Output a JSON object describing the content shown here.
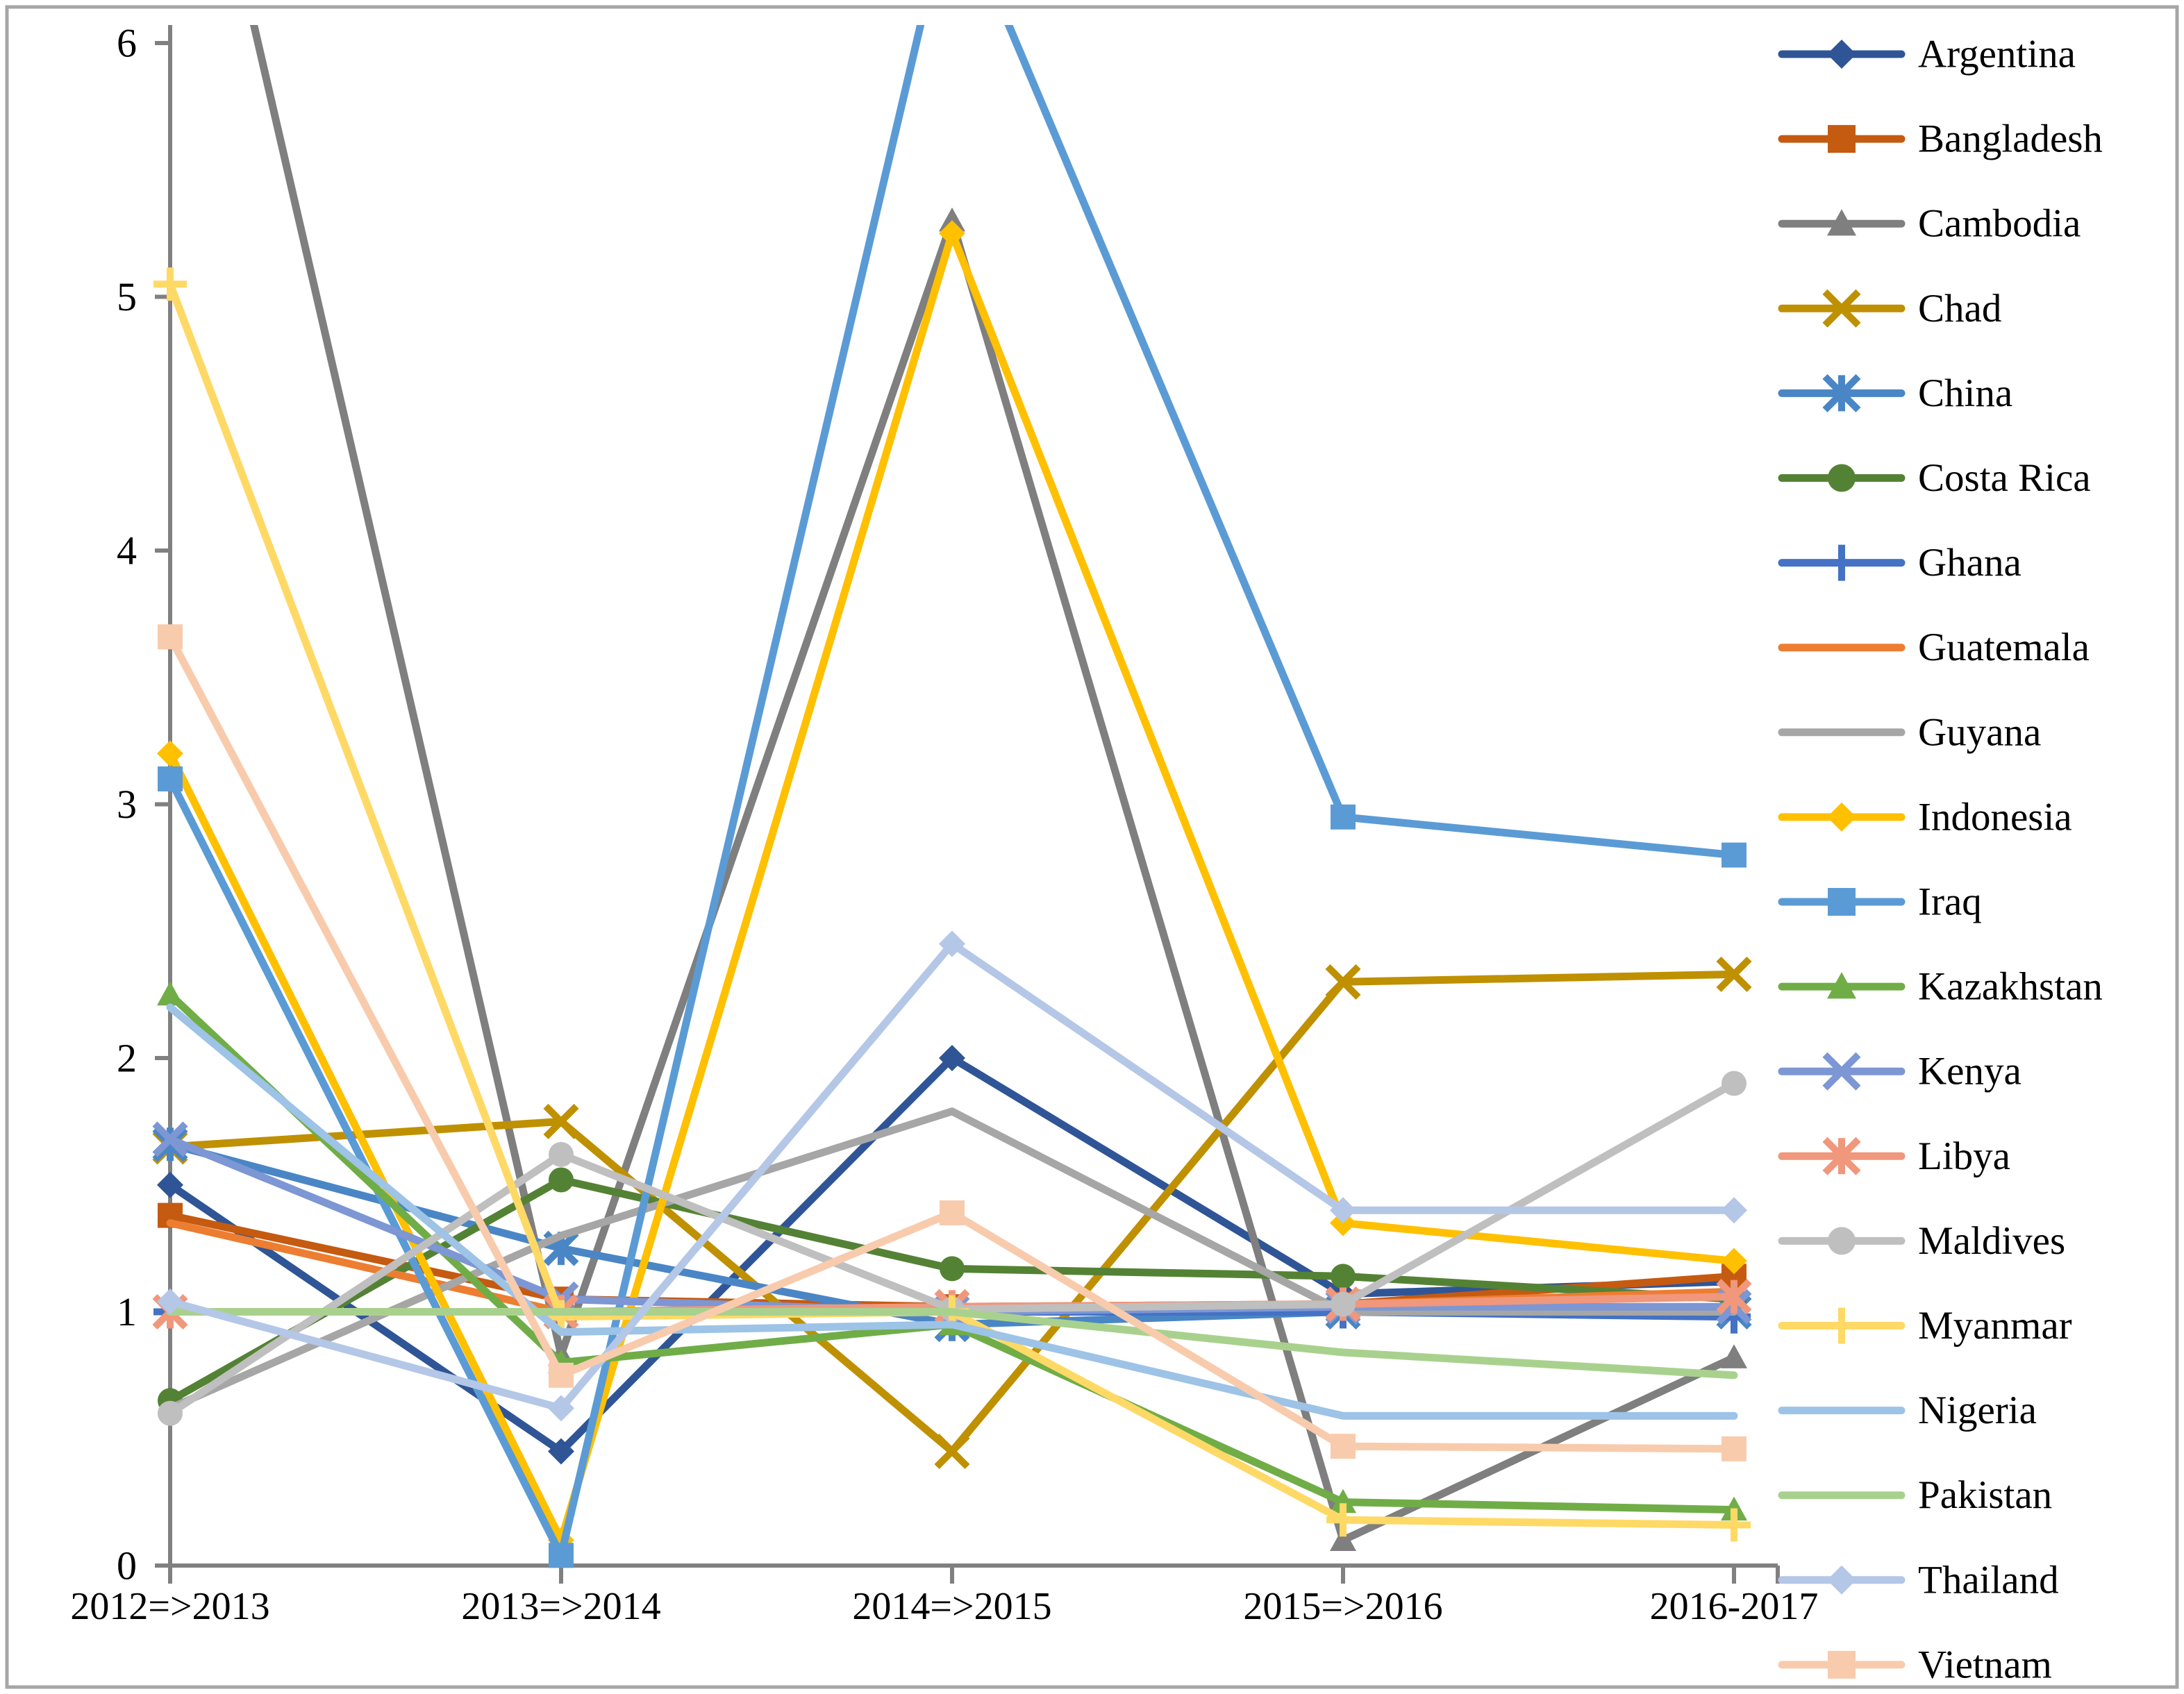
{
  "figure": {
    "background": "#FFFFFF",
    "border_color": "#A6A6A6",
    "axis_color": "#808080"
  },
  "chart_data": {
    "type": "line",
    "title": "",
    "xlabel": "",
    "ylabel": "",
    "categories": [
      "2012=>2013",
      "2013=>2014",
      "2014=>2015",
      "2015=>2016",
      "2016-2017"
    ],
    "y_ticks": [
      "0",
      "1",
      "2",
      "3",
      "4",
      "5",
      "6"
    ],
    "ylim": [
      0,
      6
    ],
    "grid": false,
    "legend_position": "right",
    "clip_note": "values above 6 run off the top of the plot",
    "series": [
      {
        "name": "Argentina",
        "color": "#2F5597",
        "marker": "diamond",
        "values": [
          1.5,
          0.45,
          2.0,
          1.07,
          1.12
        ]
      },
      {
        "name": "Bangladesh",
        "color": "#C55A11",
        "marker": "square",
        "values": [
          1.38,
          1.05,
          1.02,
          1.03,
          1.14
        ]
      },
      {
        "name": "Cambodia",
        "color": "#7F7F7F",
        "marker": "triangle",
        "values": [
          7.5,
          0.83,
          5.3,
          0.1,
          0.82
        ]
      },
      {
        "name": "Chad",
        "color": "#BF9000",
        "marker": "x",
        "values": [
          1.65,
          1.75,
          0.45,
          2.3,
          2.33
        ]
      },
      {
        "name": "China",
        "color": "#4A86C5",
        "marker": "asterisk",
        "values": [
          1.66,
          1.25,
          0.95,
          1.0,
          1.0
        ]
      },
      {
        "name": "Costa Rica",
        "color": "#548235",
        "marker": "circle",
        "values": [
          0.65,
          1.52,
          1.17,
          1.14,
          1.05
        ]
      },
      {
        "name": "Ghana",
        "color": "#4472C4",
        "marker": "plus",
        "values": [
          1.0,
          1.0,
          1.0,
          1.0,
          0.98
        ]
      },
      {
        "name": "Guatemala",
        "color": "#ED7D31",
        "marker": "none",
        "values": [
          1.35,
          1.0,
          1.0,
          1.03,
          1.08
        ]
      },
      {
        "name": "Guyana",
        "color": "#A6A6A6",
        "marker": "none",
        "values": [
          0.62,
          1.3,
          1.79,
          1.0,
          1.0
        ]
      },
      {
        "name": "Indonesia",
        "color": "#FFC000",
        "marker": "diamond",
        "values": [
          3.2,
          0.1,
          5.25,
          1.35,
          1.2
        ]
      },
      {
        "name": "Iraq",
        "color": "#5B9BD5",
        "marker": "square",
        "values": [
          3.1,
          0.04,
          6.6,
          2.95,
          2.8
        ]
      },
      {
        "name": "Kazakhstan",
        "color": "#70AD47",
        "marker": "triangle",
        "values": [
          2.25,
          0.8,
          0.95,
          0.25,
          0.22
        ]
      },
      {
        "name": "Kenya",
        "color": "#7D96D4",
        "marker": "x",
        "values": [
          1.68,
          1.05,
          1.0,
          1.02,
          1.02
        ]
      },
      {
        "name": "Libya",
        "color": "#F0977C",
        "marker": "asterisk",
        "values": [
          1.0,
          1.0,
          1.02,
          1.03,
          1.06
        ]
      },
      {
        "name": "Maldives",
        "color": "#BFBFBF",
        "marker": "circle",
        "values": [
          0.6,
          1.62,
          1.01,
          1.03,
          1.9
        ]
      },
      {
        "name": "Myanmar",
        "color": "#FFD966",
        "marker": "plus",
        "values": [
          5.05,
          0.98,
          1.0,
          0.18,
          0.16
        ]
      },
      {
        "name": "Nigeria",
        "color": "#9DC3E6",
        "marker": "none",
        "values": [
          2.2,
          0.92,
          0.95,
          0.59,
          0.59
        ]
      },
      {
        "name": "Pakistan",
        "color": "#A9D18E",
        "marker": "none",
        "values": [
          1.0,
          1.0,
          1.0,
          0.84,
          0.75
        ]
      },
      {
        "name": "Thailand",
        "color": "#B4C7E7",
        "marker": "diamond",
        "values": [
          1.04,
          0.62,
          2.45,
          1.4,
          1.4
        ]
      },
      {
        "name": "Vietnam",
        "color": "#F8CBAD",
        "marker": "square",
        "values": [
          3.66,
          0.75,
          1.39,
          0.47,
          0.46
        ]
      }
    ]
  }
}
